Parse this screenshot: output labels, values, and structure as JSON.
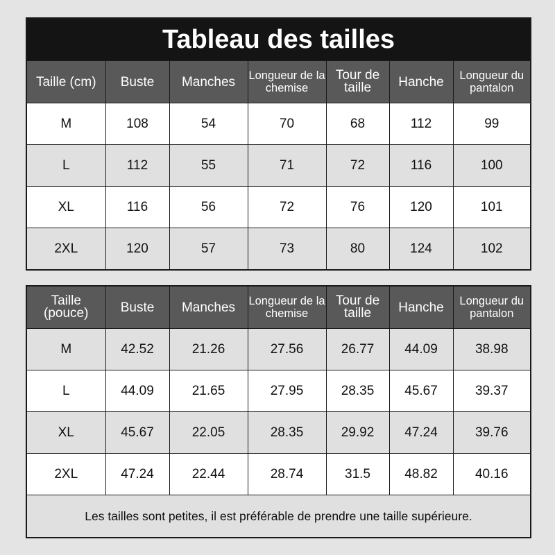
{
  "title": "Tableau des tailles",
  "colors": {
    "background": "#e4e4e4",
    "title_bg": "#141414",
    "header_bg": "#595959",
    "row_alt": "#e0e0e0"
  },
  "cm_table": {
    "headers": [
      "Taille (cm)",
      "Buste",
      "Manches",
      "Longueur de la chemise",
      "Tour de taille",
      "Hanche",
      "Longueur du pantalon"
    ],
    "rows": [
      [
        "M",
        "108",
        "54",
        "70",
        "68",
        "112",
        "99"
      ],
      [
        "L",
        "112",
        "55",
        "71",
        "72",
        "116",
        "100"
      ],
      [
        "XL",
        "116",
        "56",
        "72",
        "76",
        "120",
        "101"
      ],
      [
        "2XL",
        "120",
        "57",
        "73",
        "80",
        "124",
        "102"
      ]
    ]
  },
  "inch_table": {
    "headers": [
      "Taille (pouce)",
      "Buste",
      "Manches",
      "Longueur de la chemise",
      "Tour de taille",
      "Hanche",
      "Longueur du pantalon"
    ],
    "rows": [
      [
        "M",
        "42.52",
        "21.26",
        "27.56",
        "26.77",
        "44.09",
        "38.98"
      ],
      [
        "L",
        "44.09",
        "21.65",
        "27.95",
        "28.35",
        "45.67",
        "39.37"
      ],
      [
        "XL",
        "45.67",
        "22.05",
        "28.35",
        "29.92",
        "47.24",
        "39.76"
      ],
      [
        "2XL",
        "47.24",
        "22.44",
        "28.74",
        "31.5",
        "48.82",
        "40.16"
      ]
    ],
    "note": "Les tailles sont petites, il est préférable de prendre une taille supérieure."
  }
}
